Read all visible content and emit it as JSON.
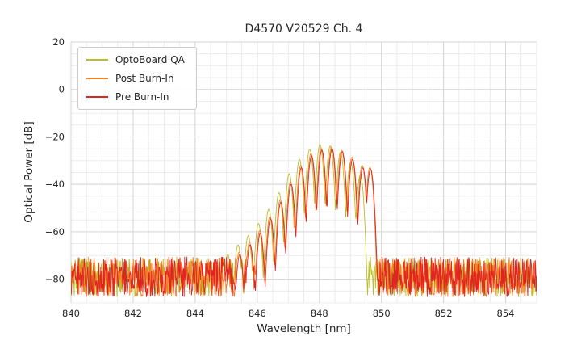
{
  "chart_data": {
    "type": "line",
    "title": "D4570 V20529 Ch. 4",
    "xlabel": "Wavelength [nm]",
    "ylabel": "Optical Power [dB]",
    "xlim": [
      840,
      855
    ],
    "ylim": [
      -90,
      20
    ],
    "x_major_ticks": [
      840,
      842,
      844,
      846,
      848,
      850,
      852,
      854
    ],
    "y_major_ticks": [
      20,
      0,
      -20,
      -40,
      -60,
      -80
    ],
    "x_minor_step": 0.5,
    "y_minor_step": 5,
    "grid": true,
    "legend_position": "upper left",
    "background_color": "#ffffff",
    "major_grid_color": "#d6d6d6",
    "minor_grid_color": "#e7e7e7",
    "text_color": "#262626",
    "sample_step_nm": 0.015,
    "series": [
      {
        "name": "OptoBoard QA",
        "color": "#bcbd22",
        "seed": 101,
        "noise_floor": {
          "top": -70.5,
          "range": 17
        },
        "mode_width_coeff": 950,
        "modes": [
          [
            845.05,
            -69.5
          ],
          [
            845.38,
            -65.5
          ],
          [
            845.71,
            -61.5
          ],
          [
            846.04,
            -56.5
          ],
          [
            846.37,
            -50.5
          ],
          [
            846.7,
            -43.5
          ],
          [
            847.03,
            -35.5
          ],
          [
            847.36,
            -29.5
          ],
          [
            847.69,
            -25.2
          ],
          [
            848.02,
            -23.2
          ],
          [
            848.35,
            -23.8
          ],
          [
            848.68,
            -26.5
          ],
          [
            849.01,
            -30.5
          ],
          [
            849.32,
            -36.0
          ]
        ]
      },
      {
        "name": "Post Burn-In",
        "color": "#f28022",
        "seed": 202,
        "noise_floor": {
          "top": -70.5,
          "range": 17
        },
        "mode_width_coeff": 950,
        "modes": [
          [
            845.42,
            -68.5
          ],
          [
            845.75,
            -64.5
          ],
          [
            846.08,
            -59.5
          ],
          [
            846.41,
            -53.5
          ],
          [
            846.74,
            -46.5
          ],
          [
            847.07,
            -39.0
          ],
          [
            847.4,
            -32.0
          ],
          [
            847.73,
            -27.0
          ],
          [
            848.06,
            -24.8
          ],
          [
            848.39,
            -24.2
          ],
          [
            848.72,
            -25.6
          ],
          [
            849.05,
            -28.6
          ],
          [
            849.38,
            -32.0
          ],
          [
            849.63,
            -32.8
          ]
        ]
      },
      {
        "name": "Pre Burn-In",
        "color": "#e02421",
        "seed": 303,
        "noise_floor": {
          "top": -70.5,
          "range": 17
        },
        "mode_width_coeff": 950,
        "modes": [
          [
            845.44,
            -69.5
          ],
          [
            845.77,
            -65.5
          ],
          [
            846.1,
            -60.5
          ],
          [
            846.43,
            -54.5
          ],
          [
            846.76,
            -47.5
          ],
          [
            847.09,
            -40.0
          ],
          [
            847.42,
            -33.0
          ],
          [
            847.75,
            -28.0
          ],
          [
            848.08,
            -25.6
          ],
          [
            848.41,
            -25.0
          ],
          [
            848.74,
            -26.2
          ],
          [
            849.07,
            -29.4
          ],
          [
            849.4,
            -33.0
          ],
          [
            849.65,
            -33.6
          ]
        ]
      }
    ]
  }
}
